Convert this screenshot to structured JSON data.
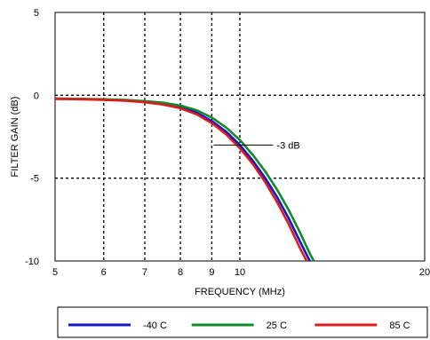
{
  "chart_data": {
    "type": "line",
    "xlabel": "FREQUENCY (MHz)",
    "ylabel": "FILTER GAIN (dB)",
    "x_scale": "log",
    "xlim": [
      5,
      20
    ],
    "ylim": [
      -10,
      5
    ],
    "x_ticks": [
      5,
      6,
      7,
      8,
      9,
      10,
      20
    ],
    "x_tick_labels": [
      "5",
      "6",
      "7",
      "8",
      "9",
      "10",
      "20"
    ],
    "y_ticks": [
      5,
      0,
      -5,
      -10
    ],
    "y_tick_labels": [
      "5",
      "0",
      "-5",
      "-10"
    ],
    "grid": "dashed",
    "legend_position": "bottom",
    "annotation": {
      "text": "-3 dB",
      "x": 9.0,
      "y": -3,
      "points_to": [
        10.25,
        -3
      ]
    },
    "series": [
      {
        "name": "-40 C",
        "color": "#1515c8",
        "x": [
          5,
          5.5,
          6,
          6.5,
          7,
          7.5,
          8,
          8.5,
          9,
          9.5,
          10,
          10.5,
          11,
          11.5,
          12,
          12.5,
          13
        ],
        "y": [
          -0.2,
          -0.22,
          -0.25,
          -0.3,
          -0.38,
          -0.5,
          -0.7,
          -1.05,
          -1.55,
          -2.2,
          -3.0,
          -3.95,
          -5.0,
          -6.15,
          -7.4,
          -8.75,
          -10.1
        ]
      },
      {
        "name": "25 C",
        "color": "#138a29",
        "x": [
          5,
          5.5,
          6,
          6.5,
          7,
          7.5,
          8,
          8.5,
          9,
          9.5,
          10,
          10.5,
          11,
          11.5,
          12,
          12.5,
          13,
          13.2
        ],
        "y": [
          -0.2,
          -0.22,
          -0.24,
          -0.28,
          -0.35,
          -0.45,
          -0.62,
          -0.9,
          -1.35,
          -1.95,
          -2.7,
          -3.6,
          -4.6,
          -5.7,
          -6.9,
          -8.2,
          -9.55,
          -10.1
        ]
      },
      {
        "name": "85 C",
        "color": "#e01b1b",
        "x": [
          5,
          5.5,
          6,
          6.5,
          7,
          7.5,
          8,
          8.5,
          9,
          9.5,
          10,
          10.5,
          11,
          11.5,
          12,
          12.5,
          12.85
        ],
        "y": [
          -0.22,
          -0.24,
          -0.28,
          -0.33,
          -0.42,
          -0.56,
          -0.78,
          -1.15,
          -1.68,
          -2.36,
          -3.2,
          -4.15,
          -5.25,
          -6.45,
          -7.75,
          -9.15,
          -10.1
        ]
      }
    ]
  }
}
